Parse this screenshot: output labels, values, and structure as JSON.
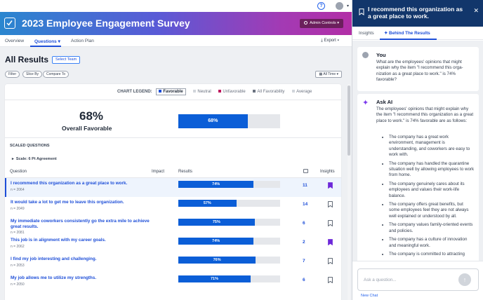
{
  "app": {
    "title": "2023 Employee Engagement Survey",
    "admin_controls": "Admin Controls",
    "help_icon": "question-circle-icon"
  },
  "nav": {
    "tabs": [
      {
        "label": "Overview"
      },
      {
        "label": "Questions"
      },
      {
        "label": "Action Plan"
      }
    ],
    "export": "Export"
  },
  "page": {
    "title": "All Results",
    "select_team": "Select Team",
    "filters": [
      "Filter",
      "Slice By",
      "Compare To"
    ],
    "all_time": "All Time"
  },
  "legend": {
    "label": "CHART LEGEND:",
    "items": [
      {
        "name": "Favorable",
        "color": "#1d4ed8"
      },
      {
        "name": "Neutral",
        "color": "#d1d5db"
      },
      {
        "name": "Unfavorable",
        "color": "#be185d"
      },
      {
        "name": "All Favorability",
        "color": "#6b7280"
      },
      {
        "name": "Average",
        "color": "#d1d5db"
      }
    ]
  },
  "summary": {
    "percent": "68%",
    "label": "Overall Favorable",
    "bar_label": "68%",
    "value": 68
  },
  "section": {
    "scaled_questions": "SCALED QUESTIONS",
    "scale": "Scale: 6 Pt Agreement"
  },
  "table": {
    "headers": {
      "question": "Question",
      "impact": "Impact",
      "results": "Results",
      "insights": "Insights"
    },
    "rows": [
      {
        "question": "I recommend this organization as a great place to work.",
        "n": "n = 2064",
        "label": "74%",
        "value": 74,
        "count": "11",
        "bookmarked": true,
        "highlighted": true
      },
      {
        "question": "It would take a lot to get me to leave this organization.",
        "n": "n = 2049",
        "label": "57%",
        "value": 57,
        "count": "14",
        "bookmarked": false,
        "highlighted": false
      },
      {
        "question": "My immediate coworkers consistently go the extra mile to achieve great results.",
        "n": "n = 2081",
        "label": "75%",
        "value": 75,
        "count": "6",
        "bookmarked": false,
        "highlighted": false
      },
      {
        "question": "This job is in alignment with my career goals.",
        "n": "n = 2062",
        "label": "74%",
        "value": 74,
        "count": "2",
        "bookmarked": true,
        "highlighted": false
      },
      {
        "question": "I find my job interesting and challenging.",
        "n": "n = 2053",
        "label": "76%",
        "value": 76,
        "count": "7",
        "bookmarked": false,
        "highlighted": false
      },
      {
        "question": "My job allows me to utilize my strengths.",
        "n": "n = 2050",
        "label": "71%",
        "value": 71,
        "count": "6",
        "bookmarked": false,
        "highlighted": false
      }
    ]
  },
  "panel": {
    "title": "I recommend this organization as a great place to work.",
    "tabs": [
      {
        "label": "Insights"
      },
      {
        "label": "Behind The Results"
      }
    ],
    "user_name": "You",
    "user_message": "What are the employees' opinions that might explain why the item \"I recommend this orga-nization as a great place to work.\" is 74% favorable?",
    "ai_name": "Ask AI",
    "ai_intro": "The employees' opinions that might explain why the item \"I recommend this organization as a great place to work.\" is 74% favorable are as follows:",
    "ai_points": [
      "The company has a great work environment, management is understanding, and coworkers are easy to work with.",
      "The company has handled the quarantine situation well by allowing employees to work from home.",
      "The company genuinely cares about its employees and values their work-life balance.",
      "The company offers great benefits, but some employees feel they are not always well explained or understood by all.",
      "The company values family-oriented events and policies.",
      "The company has a culture of innovation and meaningful work.",
      "The company is committed to attracting"
    ],
    "ask_placeholder": "Ask a question...",
    "new_chat": "New Chat"
  }
}
